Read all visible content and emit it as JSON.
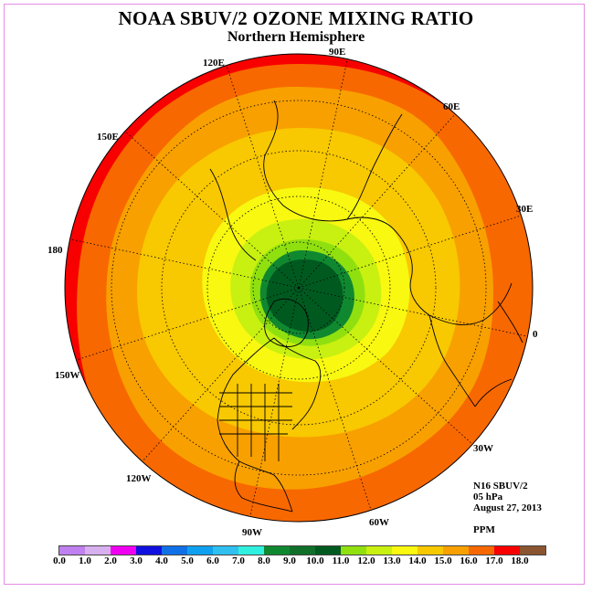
{
  "title": "NOAA SBUV/2 OZONE MIXING RATIO",
  "subtitle": "Northern Hemisphere",
  "longitude_labels": [
    "120E",
    "90E",
    "60E",
    "150E",
    "30E",
    "180",
    "0",
    "150W",
    "30W",
    "120W",
    "60W",
    "90W"
  ],
  "info": {
    "satellite": "N16 SBUV/2",
    "level": "05 hPa",
    "date": "August 27, 2013",
    "units": "PPM"
  },
  "colorbar": {
    "colors": [
      "#c080f0",
      "#d8b0f0",
      "#f000f0",
      "#1010e0",
      "#1070e8",
      "#10a0f0",
      "#30c0f0",
      "#30f0e0",
      "#108830",
      "#10702a",
      "#005a20",
      "#90e010",
      "#c8f010",
      "#f8f810",
      "#f8c800",
      "#f8a000",
      "#f86800",
      "#f80000",
      "#8a5530"
    ],
    "tick_labels": [
      "0.0",
      "1.0",
      "2.0",
      "3.0",
      "4.0",
      "5.0",
      "6.0",
      "7.0",
      "8.0",
      "9.0",
      "10.0",
      "11.0",
      "12.0",
      "13.0",
      "14.0",
      "15.0",
      "16.0",
      "17.0",
      "18.0"
    ]
  },
  "map_colors": {
    "red": "#f80000",
    "dark_orange": "#f86800",
    "orange": "#f8a000",
    "gold": "#f8c800",
    "yellow": "#f8f810",
    "yellow_green": "#c8f010",
    "light_green": "#90e010",
    "mid_green": "#108830",
    "dark_green": "#005a20"
  }
}
